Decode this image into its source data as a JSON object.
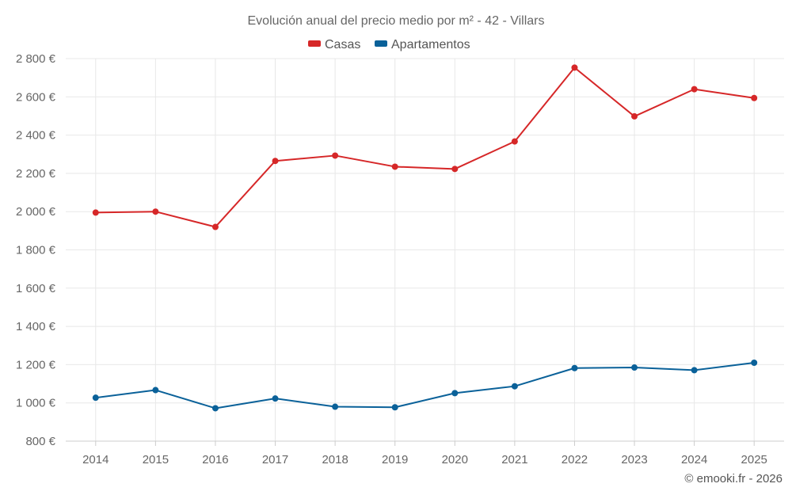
{
  "chart_data": {
    "type": "line",
    "title": "Evolución anual del precio medio por m² - 42 - Villars",
    "categories": [
      "2014",
      "2015",
      "2016",
      "2017",
      "2018",
      "2019",
      "2020",
      "2021",
      "2022",
      "2023",
      "2024",
      "2025"
    ],
    "series": [
      {
        "name": "Casas",
        "color": "#d62728",
        "values": [
          1995,
          2000,
          1920,
          2265,
          2293,
          2235,
          2223,
          2367,
          2753,
          2498,
          2640,
          2594
        ]
      },
      {
        "name": "Apartamentos",
        "color": "#0a6199",
        "values": [
          1027,
          1067,
          972,
          1023,
          980,
          977,
          1051,
          1087,
          1182,
          1185,
          1171,
          1210
        ]
      }
    ],
    "ylim": [
      800,
      2800
    ],
    "yticks": [
      800,
      1000,
      1200,
      1400,
      1600,
      1800,
      2000,
      2200,
      2400,
      2600,
      2800
    ],
    "ytick_labels": [
      "800 €",
      "1 000 €",
      "1 200 €",
      "1 400 €",
      "1 600 €",
      "1 800 €",
      "2 000 €",
      "2 200 €",
      "2 400 €",
      "2 600 €",
      "2 800 €"
    ],
    "grid": true,
    "legend_position": "top-center",
    "xlabel": "",
    "ylabel": "",
    "credit": "© emooki.fr - 2026"
  }
}
